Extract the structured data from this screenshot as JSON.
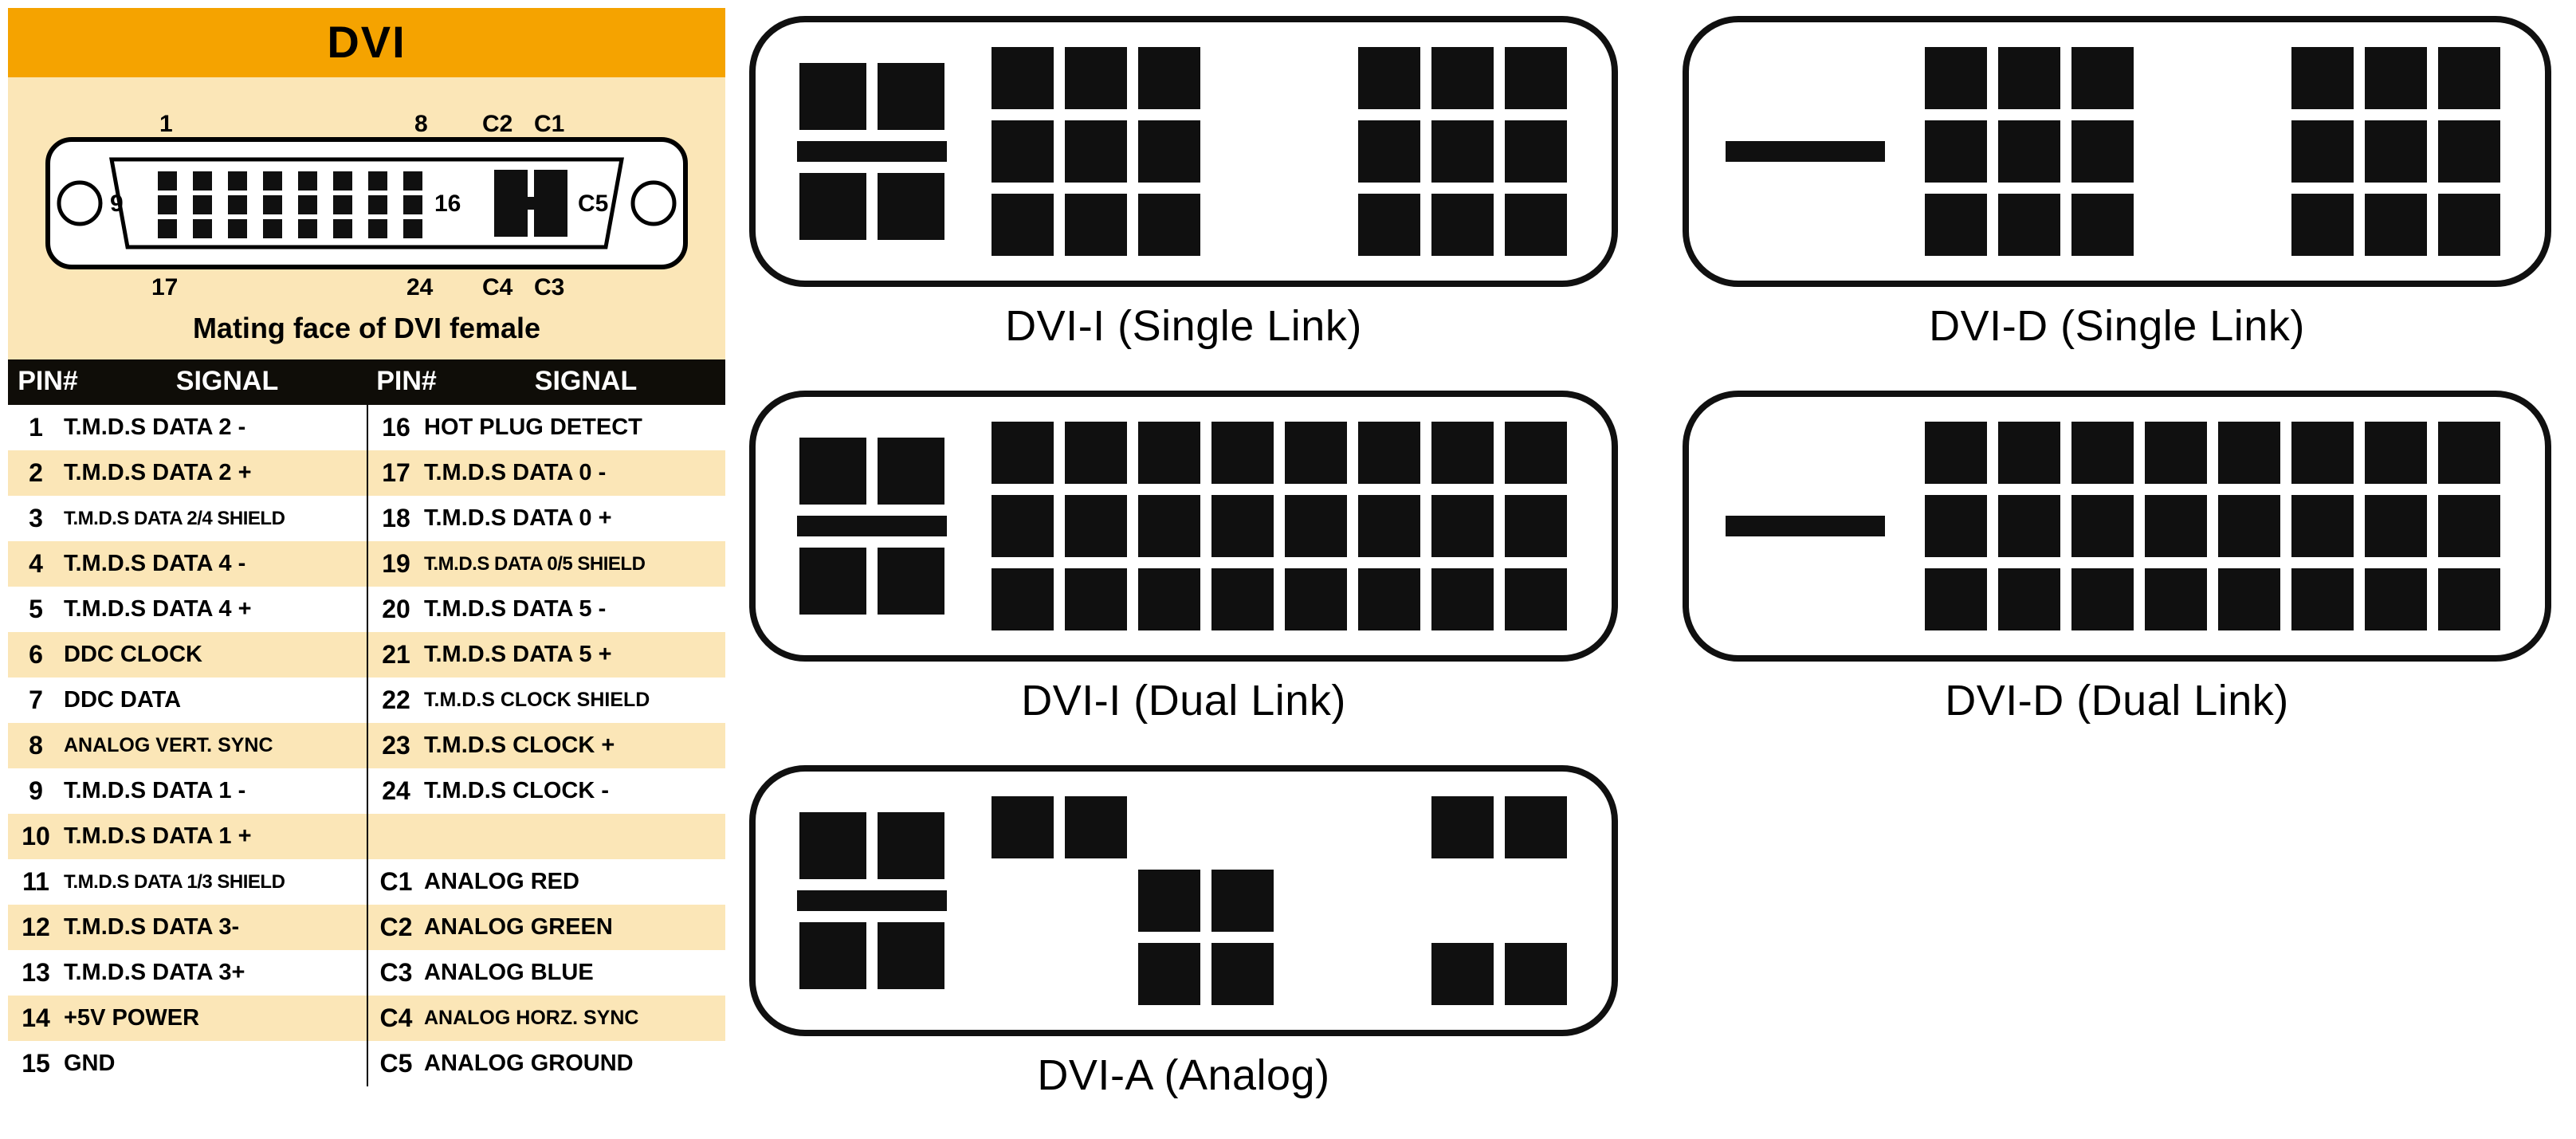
{
  "colors": {
    "title_bg": "#f5a300",
    "cream_bg": "#fbe6b7",
    "header_bg": "#0f0d08",
    "row_alt_bg": "#fbe6b7",
    "pin_fill": "#101010",
    "frame_stroke": "#101010",
    "page_bg": "#ffffff"
  },
  "panel": {
    "title": "DVI",
    "caption": "Mating face of DVI female",
    "mini_labels": {
      "l1": "1",
      "l8": "8",
      "lC2": "C2",
      "lC1": "C1",
      "l9": "9",
      "l16": "16",
      "lC5": "C5",
      "l17": "17",
      "l24": "24",
      "lC4": "C4",
      "lC3": "C3"
    },
    "header": {
      "pin": "PIN#",
      "signal": "SIGNAL"
    },
    "rows_left": [
      {
        "n": "1",
        "s": "T.M.D.S DATA 2 -"
      },
      {
        "n": "2",
        "s": "T.M.D.S DATA 2 +"
      },
      {
        "n": "3",
        "s": "T.M.D.S DATA 2/4 SHIELD",
        "size": "xsmall"
      },
      {
        "n": "4",
        "s": "T.M.D.S DATA 4 -"
      },
      {
        "n": "5",
        "s": "T.M.D.S DATA 4 +"
      },
      {
        "n": "6",
        "s": "DDC CLOCK"
      },
      {
        "n": "7",
        "s": "DDC DATA"
      },
      {
        "n": "8",
        "s": "ANALOG VERT. SYNC",
        "size": "small"
      },
      {
        "n": "9",
        "s": "T.M.D.S DATA 1 -"
      },
      {
        "n": "10",
        "s": "T.M.D.S DATA 1 +"
      },
      {
        "n": "11",
        "s": "T.M.D.S DATA 1/3 SHIELD",
        "size": "xsmall"
      },
      {
        "n": "12",
        "s": "T.M.D.S DATA 3-"
      },
      {
        "n": "13",
        "s": "T.M.D.S DATA 3+"
      },
      {
        "n": "14",
        "s": "+5V POWER"
      },
      {
        "n": "15",
        "s": "GND"
      }
    ],
    "rows_right": [
      {
        "n": "16",
        "s": "HOT PLUG DETECT"
      },
      {
        "n": "17",
        "s": "T.M.D.S DATA 0 -"
      },
      {
        "n": "18",
        "s": "T.M.D.S DATA 0 +"
      },
      {
        "n": "19",
        "s": "T.M.D.S DATA 0/5 SHIELD",
        "size": "xsmall"
      },
      {
        "n": "20",
        "s": "T.M.D.S DATA 5 -"
      },
      {
        "n": "21",
        "s": "T.M.D.S DATA 5 +"
      },
      {
        "n": "22",
        "s": "T.M.D.S CLOCK SHIELD",
        "size": "small"
      },
      {
        "n": "23",
        "s": "T.M.D.S CLOCK +"
      },
      {
        "n": "24",
        "s": "T.M.D.S CLOCK -"
      },
      {
        "n": "",
        "s": ""
      },
      {
        "n": "C1",
        "s": "ANALOG RED"
      },
      {
        "n": "C2",
        "s": "ANALOG GREEN"
      },
      {
        "n": "C3",
        "s": "ANALOG BLUE"
      },
      {
        "n": "C4",
        "s": "ANALOG HORZ. SYNC",
        "size": "small"
      },
      {
        "n": "C5",
        "s": "ANALOG GROUND"
      }
    ]
  },
  "connectors": [
    {
      "id": "dvi-i-single",
      "label": "DVI-I (Single Link)",
      "cblock": "full",
      "pins": [
        1,
        1,
        1,
        1,
        1,
        1,
        1,
        1,
        1,
        0,
        0,
        0,
        0,
        0,
        0,
        1,
        1,
        1,
        1,
        1,
        1,
        1,
        1,
        1
      ],
      "cols": 8
    },
    {
      "id": "dvi-d-single",
      "label": "DVI-D (Single Link)",
      "cblock": "blade",
      "pins": [
        1,
        1,
        1,
        1,
        1,
        1,
        1,
        1,
        1,
        0,
        0,
        0,
        0,
        0,
        0,
        1,
        1,
        1,
        1,
        1,
        1,
        1,
        1,
        1
      ],
      "cols": 8
    },
    {
      "id": "dvi-i-dual",
      "label": "DVI-I (Dual Link)",
      "cblock": "full",
      "pins": [
        1,
        1,
        1,
        1,
        1,
        1,
        1,
        1,
        1,
        1,
        1,
        1,
        1,
        1,
        1,
        1,
        1,
        1,
        1,
        1,
        1,
        1,
        1,
        1
      ],
      "cols": 8
    },
    {
      "id": "dvi-d-dual",
      "label": "DVI-D (Dual Link)",
      "cblock": "blade",
      "pins": [
        1,
        1,
        1,
        1,
        1,
        1,
        1,
        1,
        1,
        1,
        1,
        1,
        1,
        1,
        1,
        1,
        1,
        1,
        1,
        1,
        1,
        1,
        1,
        1
      ],
      "cols": 8
    },
    {
      "id": "dvi-a",
      "label": "DVI-A (Analog)",
      "cblock": "full",
      "pins": [
        1,
        0,
        0,
        1,
        0,
        0,
        0,
        1,
        1,
        0,
        1,
        1,
        0,
        0,
        0,
        0,
        0,
        0,
        1,
        0,
        1,
        1,
        0,
        1
      ],
      "cols": 8
    }
  ]
}
